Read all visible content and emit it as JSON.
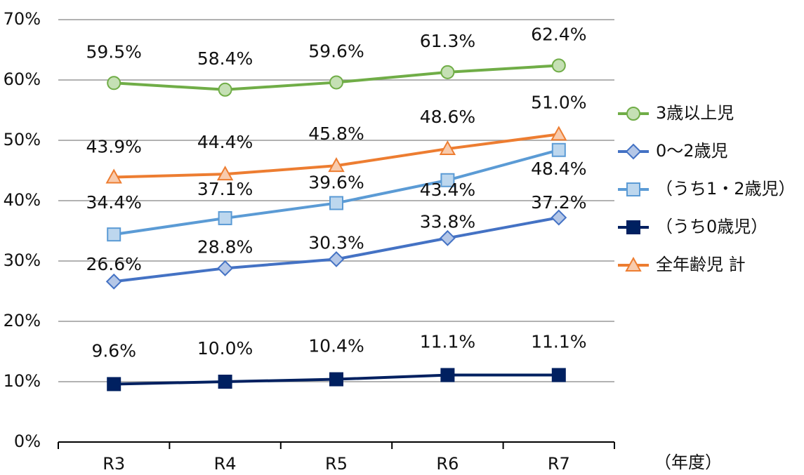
{
  "chart_data": {
    "type": "line",
    "categories": [
      "R3",
      "R4",
      "R5",
      "R6",
      "R7"
    ],
    "xlabel": "（年度）",
    "ylim": [
      0,
      70
    ],
    "yticks": [
      {
        "value": 0,
        "label": "0%"
      },
      {
        "value": 10,
        "label": "10%"
      },
      {
        "value": 20,
        "label": "20%"
      },
      {
        "value": 30,
        "label": "30%"
      },
      {
        "value": 40,
        "label": "40%"
      },
      {
        "value": 50,
        "label": "50%"
      },
      {
        "value": 60,
        "label": "60%"
      },
      {
        "value": 70,
        "label": "70%"
      }
    ],
    "grid": true,
    "legend": "right",
    "series": [
      {
        "name": "3歳以上児",
        "color": "#70ad47",
        "marker": "circle",
        "marker_fill": "#c5e0b4",
        "values": [
          59.5,
          58.4,
          59.6,
          61.3,
          62.4
        ],
        "value_labels": [
          "59.5%",
          "58.4%",
          "59.6%",
          "61.3%",
          "62.4%"
        ]
      },
      {
        "name": "0～2歳児",
        "color": "#4472c4",
        "marker": "diamond",
        "marker_fill": "#b4c7e7",
        "values": [
          26.6,
          28.8,
          30.3,
          33.8,
          37.2
        ],
        "value_labels": [
          "26.6%",
          "28.8%",
          "30.3%",
          "33.8%",
          "37.2%"
        ]
      },
      {
        "name": "（うち1・2歳児）",
        "color": "#5b9bd5",
        "marker": "square",
        "marker_fill": "#bdd7ee",
        "values": [
          34.4,
          37.1,
          39.6,
          43.4,
          48.4
        ],
        "value_labels": [
          "34.4%",
          "37.1%",
          "39.6%",
          "43.4%",
          "48.4%"
        ]
      },
      {
        "name": "（うち0歳児）",
        "color": "#002060",
        "marker": "square",
        "marker_fill": "#002060",
        "values": [
          9.6,
          10.0,
          10.4,
          11.1,
          11.1
        ],
        "value_labels": [
          "9.6%",
          "10.0%",
          "10.4%",
          "11.1%",
          "11.1%"
        ]
      },
      {
        "name": "全年齢児 計",
        "color": "#ed7d31",
        "marker": "triangle",
        "marker_fill": "#f8cbad",
        "values": [
          43.9,
          44.4,
          45.8,
          48.6,
          51.0
        ],
        "value_labels": [
          "43.9%",
          "44.4%",
          "45.8%",
          "48.6%",
          "51.0%"
        ]
      }
    ]
  }
}
